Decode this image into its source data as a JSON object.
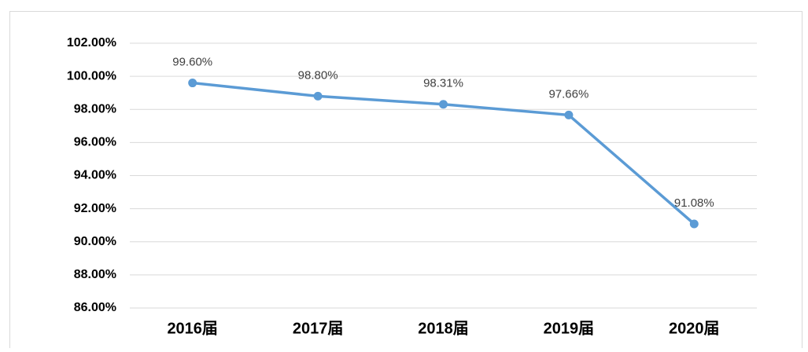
{
  "chart_data": {
    "type": "line",
    "categories": [
      "2016届",
      "2017届",
      "2018届",
      "2019届",
      "2020届"
    ],
    "series": [
      {
        "name": null,
        "color": "#5b9bd5",
        "values": [
          99.6,
          98.8,
          98.31,
          97.66,
          91.08
        ],
        "value_labels": [
          "99.60%",
          "98.80%",
          "98.31%",
          "97.66%",
          "91.08%"
        ]
      }
    ],
    "ylim": [
      86,
      102
    ],
    "yticks": [
      {
        "value": 86,
        "label": "86.00%"
      },
      {
        "value": 88,
        "label": "88.00%"
      },
      {
        "value": 90,
        "label": "90.00%"
      },
      {
        "value": 92,
        "label": "92.00%"
      },
      {
        "value": 94,
        "label": "94.00%"
      },
      {
        "value": 96,
        "label": "96.00%"
      },
      {
        "value": 98,
        "label": "98.00%"
      },
      {
        "value": 100,
        "label": "100.00%"
      },
      {
        "value": 102,
        "label": "102.00%"
      }
    ],
    "grid": true
  }
}
